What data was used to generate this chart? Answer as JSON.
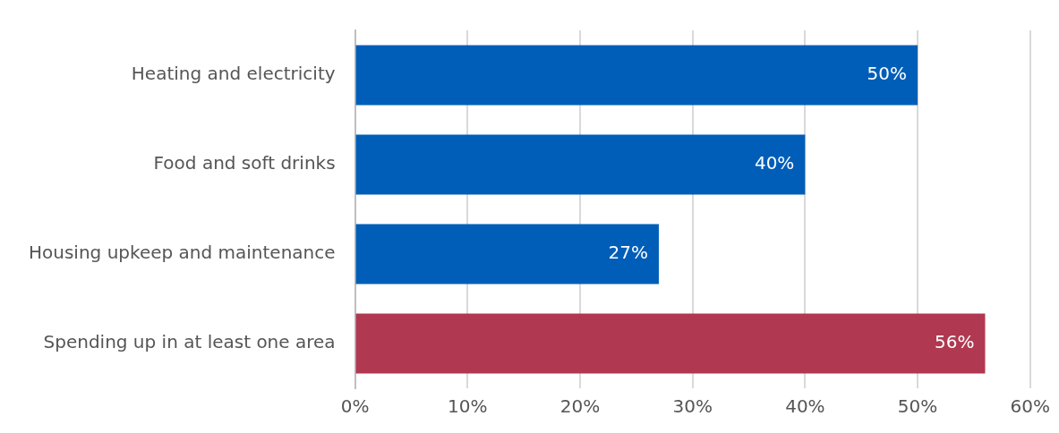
{
  "chart_data": {
    "type": "bar",
    "orientation": "horizontal",
    "categories": [
      "Heating and electricity",
      "Food and soft drinks",
      "Housing upkeep and maintenance",
      "Spending up in at least one area"
    ],
    "values": [
      50,
      40,
      27,
      56
    ],
    "colors": [
      "#005eb8",
      "#005eb8",
      "#005eb8",
      "#b03850"
    ],
    "value_labels": [
      "50%",
      "40%",
      "27%",
      "56%"
    ],
    "xlim": [
      0,
      60
    ],
    "xticks": [
      {
        "value": 0,
        "label": "0%"
      },
      {
        "value": 10,
        "label": "10%"
      },
      {
        "value": 20,
        "label": "20%"
      },
      {
        "value": 30,
        "label": "30%"
      },
      {
        "value": 40,
        "label": "40%"
      },
      {
        "value": 50,
        "label": "50%"
      },
      {
        "value": 60,
        "label": "60%"
      }
    ],
    "grid": "x",
    "legend": false
  }
}
